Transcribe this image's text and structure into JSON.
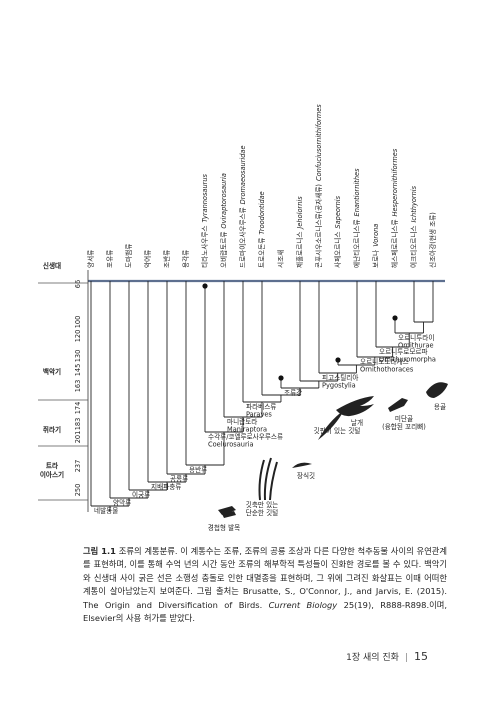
{
  "taxa": [
    {
      "ko": "양서류"
    },
    {
      "ko": "포유류"
    },
    {
      "ko": "도마뱀류"
    },
    {
      "ko": "악어류"
    },
    {
      "ko": "조반류"
    },
    {
      "ko": "용각류"
    },
    {
      "ko": "티라노사우루스",
      "latin": "Tyrannosaurus"
    },
    {
      "ko": "오비랍토르류",
      "latin": "Oviraptorosauria"
    },
    {
      "ko": "드로마이오사우루스류",
      "latin": "Dromaeosauridae"
    },
    {
      "ko": "트로오돈류",
      "latin": "Troodontidae"
    },
    {
      "ko": "시조새"
    },
    {
      "ko": "제홀로르니스",
      "latin": "Jeholornis"
    },
    {
      "ko": "콘푸시우소르니스류(공자새류)",
      "latin": "Confuciusornithiformes"
    },
    {
      "ko": "사페오르니스",
      "latin": "Sapeornis"
    },
    {
      "ko": "에난티오르니스류",
      "latin": "Enantiornithes"
    },
    {
      "ko": "보로나",
      "latin": "Vorona"
    },
    {
      "ko": "헤스페로르니스류",
      "latin": "Hesperornithiformes"
    },
    {
      "ko": "이크티오르니스",
      "latin": "Ichthyornis"
    },
    {
      "ko": "신조아강(현생 조류)"
    }
  ],
  "periods": [
    "신생대",
    "백악기",
    "쥐라기",
    "트라이아스기"
  ],
  "time_ticks": [
    "66",
    "100",
    "120",
    "130",
    "145",
    "163",
    "174",
    "183",
    "201",
    "237",
    "250"
  ],
  "nodes": [
    {
      "ko": "네발동물"
    },
    {
      "ko": "양막류"
    },
    {
      "ko": "이궁류"
    },
    {
      "ko": "지배파충류"
    },
    {
      "ko": "공룡류"
    },
    {
      "ko": "용반류"
    },
    {
      "ko": "수각류/코엘루로사우루스류",
      "latin": "Coelurosauria"
    },
    {
      "ko": "마니랍토라",
      "latin": "Maniraptora"
    },
    {
      "ko": "파라베스류",
      "latin": "Paraves"
    },
    {
      "ko": "조류강"
    },
    {
      "ko": "피고스틸리아",
      "latin": "Pygostylia"
    },
    {
      "ko": "오르니토토라케스",
      "latin": "Ornithothoraces"
    },
    {
      "ko": "오르니투로모르파",
      "latin": "Ornithuromorpha"
    },
    {
      "ko": "오르니투라이",
      "latin": "Ornithurae"
    }
  ],
  "traits": [
    [
      "경첩형 발목"
    ],
    [
      "깃축만 있는",
      "단순한 깃털"
    ],
    [
      "장식깃"
    ],
    [
      "깃판이 있는 깃털"
    ],
    [
      "날개"
    ],
    [
      "미단골",
      "(융합된 꼬리뼈)"
    ],
    [
      "용골"
    ]
  ],
  "caption": {
    "label": "그림 1.1",
    "text": "조류의 계통분류. 이 계통수는 조류, 조류의 공룡 조상과 다른 다양한 척추동물 사이의 유연관계를 표현하며, 이를 통해 수억 년의 시간 동안 조류의 해부학적 특성들이 진화한 경로를 볼 수 있다. 백악기와 신생대 사이 굵은 선은 소행성 충돌로 인한 대멸종을 표현하며, 그 위에 그려진 화살표는 이때 어떠한 계통이 살아남았는지 보여준다. 그림 출처는 Brusatte, S., O'Connor, J., and Jarvis, E. (2015). The Origin and Diversification of Birds.",
    "journal": "Current Biology",
    "text_after": "25(19), R888-R898.이며, Elsevier의 사용 허가를 받았다."
  },
  "footer": {
    "chapter": "1장 새의 진화",
    "page": "15"
  }
}
